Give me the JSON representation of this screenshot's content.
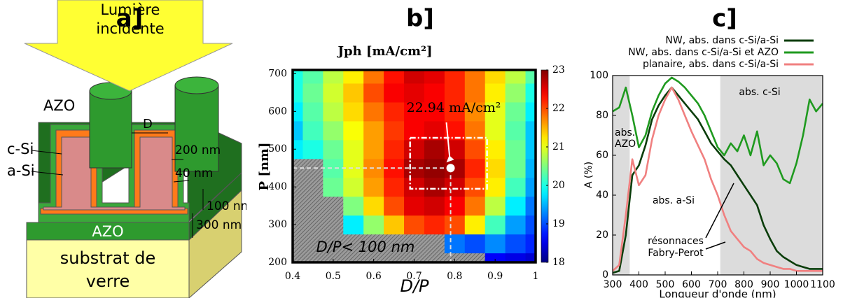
{
  "diagram": {
    "panel_label": "a]",
    "arrow_label": [
      "Lumière",
      "incidente"
    ],
    "labels": {
      "azo_top": "AZO",
      "c_si": "c-Si",
      "a_si": "a-Si",
      "d": "D",
      "t200": "200 nm",
      "t40": "40 nm",
      "t100": "100 nm",
      "t300": "300 nm",
      "azo_bottom": "AZO"
    },
    "substrate": [
      "substrat de",
      "verre"
    ]
  },
  "chart_data": [
    {
      "type": "heatmap",
      "panel_label": "b]",
      "title": "Jph [mA/cm²]",
      "xlabel": "D/P",
      "ylabel": "P [nm]",
      "x": [
        0.4,
        0.45,
        0.5,
        0.55,
        0.6,
        0.65,
        0.7,
        0.75,
        0.8,
        0.85,
        0.9,
        0.95,
        1
      ],
      "y": [
        200,
        250,
        300,
        350,
        400,
        450,
        500,
        550,
        600,
        650,
        700
      ],
      "z": [
        [
          null,
          null,
          null,
          null,
          null,
          null,
          null,
          null,
          null,
          null,
          18.6,
          18.5,
          18.4
        ],
        [
          null,
          null,
          null,
          null,
          null,
          null,
          null,
          null,
          19.2,
          19.0,
          19.3,
          19.0,
          18.8
        ],
        [
          null,
          null,
          null,
          19.8,
          20.6,
          21.4,
          22.0,
          22.2,
          22.0,
          21.2,
          20.2,
          19.4,
          19.0
        ],
        [
          null,
          null,
          null,
          20.5,
          21.3,
          22.0,
          22.5,
          22.6,
          22.4,
          21.8,
          20.8,
          19.8,
          19.2
        ],
        [
          null,
          null,
          20.4,
          20.9,
          21.6,
          22.2,
          22.6,
          22.8,
          22.6,
          22.0,
          21.2,
          20.2,
          19.4
        ],
        [
          null,
          null,
          20.3,
          21.0,
          21.7,
          22.3,
          22.8,
          22.9,
          22.8,
          22.2,
          21.3,
          20.4,
          19.5
        ],
        [
          19.8,
          20.0,
          20.4,
          21.0,
          21.6,
          22.2,
          22.6,
          22.8,
          22.6,
          22.0,
          21.2,
          20.4,
          19.6
        ],
        [
          19.6,
          20.2,
          20.6,
          21.1,
          21.6,
          22.1,
          22.4,
          22.5,
          22.3,
          21.8,
          21.0,
          20.3,
          19.6
        ],
        [
          19.8,
          20.3,
          20.8,
          21.3,
          21.8,
          22.2,
          22.4,
          22.4,
          22.2,
          21.7,
          21.0,
          20.4,
          19.8
        ],
        [
          20.0,
          20.4,
          20.9,
          21.4,
          22.0,
          22.4,
          22.5,
          22.4,
          22.2,
          21.8,
          21.2,
          20.6,
          20.0
        ],
        [
          20.0,
          20.3,
          20.8,
          21.2,
          21.8,
          22.3,
          22.6,
          22.5,
          22.2,
          21.8,
          21.3,
          20.8,
          20.3
        ]
      ],
      "xlim": [
        0.4,
        1
      ],
      "ylim": [
        200,
        710
      ],
      "xticks": [
        0.4,
        0.5,
        0.6,
        0.7,
        0.8,
        0.9,
        1
      ],
      "yticks": [
        200,
        300,
        400,
        500,
        600,
        700
      ],
      "colormap": "jet",
      "clim": [
        18,
        23
      ],
      "cticks": [
        18,
        19,
        20,
        21,
        22,
        23
      ],
      "optimum": {
        "x": 0.79,
        "y": 450
      },
      "annotation": "22.94 mA/cm²",
      "box": {
        "x": [
          0.69,
          0.88
        ],
        "y": [
          395,
          530
        ]
      },
      "excluded_label": "D/P< 100 nm"
    },
    {
      "type": "line",
      "panel_label": "c]",
      "xlabel": "Longueur d'onde (nm)",
      "ylabel": "A (%)",
      "x": [
        300,
        325,
        350,
        375,
        400,
        425,
        450,
        475,
        500,
        525,
        550,
        575,
        600,
        625,
        650,
        675,
        700,
        725,
        750,
        775,
        800,
        825,
        850,
        875,
        900,
        925,
        950,
        975,
        1000,
        1025,
        1050,
        1075,
        1100
      ],
      "series": [
        {
          "name": "NW, abs. dans c-Si/a-Si",
          "color": "#0a3d0a",
          "values": [
            1,
            2,
            20,
            50,
            55,
            65,
            78,
            85,
            90,
            94,
            90,
            86,
            82,
            78,
            72,
            66,
            62,
            58,
            55,
            50,
            45,
            40,
            35,
            25,
            18,
            12,
            9,
            7,
            5,
            4,
            3,
            3,
            3
          ]
        },
        {
          "name": "NW, abs. dans c-Si/a-Si et AZO",
          "color": "#1f9a1f",
          "values": [
            82,
            84,
            94,
            80,
            64,
            70,
            82,
            90,
            96,
            99,
            97,
            94,
            90,
            86,
            80,
            72,
            64,
            60,
            66,
            62,
            70,
            60,
            72,
            55,
            60,
            56,
            48,
            46,
            56,
            70,
            88,
            82,
            86
          ]
        },
        {
          "name": "planaire, abs. dans c-Si/a-Si",
          "color": "#f08080",
          "values": [
            2,
            5,
            30,
            58,
            45,
            50,
            68,
            80,
            88,
            94,
            88,
            80,
            72,
            65,
            58,
            48,
            40,
            30,
            22,
            18,
            14,
            12,
            8,
            6,
            5,
            4,
            3,
            3,
            2,
            2,
            2,
            2,
            2
          ]
        }
      ],
      "xlim": [
        300,
        1100
      ],
      "ylim": [
        0,
        100
      ],
      "xticks": [
        300,
        400,
        500,
        600,
        700,
        800,
        900,
        1000,
        1100
      ],
      "yticks": [
        0,
        20,
        40,
        60,
        80,
        100
      ],
      "shaded": [
        [
          300,
          365
        ],
        [
          710,
          1100
        ]
      ],
      "legend": "top",
      "region_labels": {
        "azo": [
          "abs.",
          "AZO"
        ],
        "c_si": "abs. c-Si",
        "a_si": "abs. a-Si",
        "fabry_perot": [
          "résonnaces",
          "Fabry-Perot"
        ]
      }
    }
  ]
}
